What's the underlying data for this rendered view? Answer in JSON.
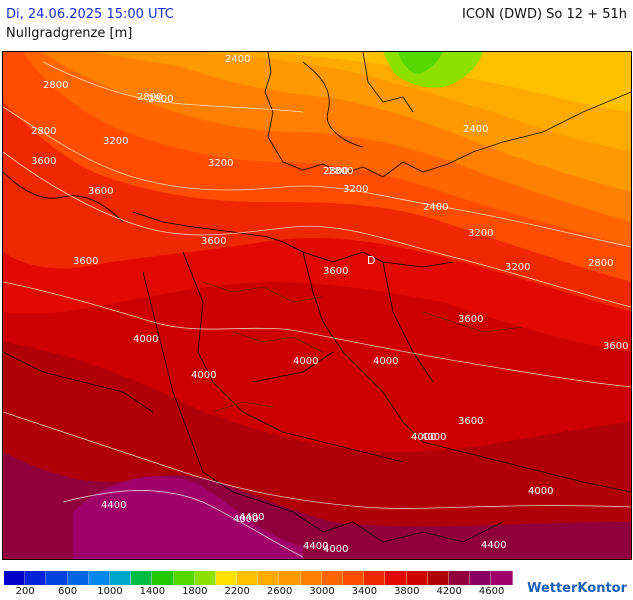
{
  "header": {
    "datetime": "Di, 24.06.2025 15:00 UTC",
    "model": "ICON (DWD) So 12 + 51h",
    "parameter": "Nullgradgrenze [m]"
  },
  "map": {
    "contour_labels": [
      "2800",
      "2800",
      "2400",
      "2800",
      "2800",
      "2400",
      "3200",
      "3200",
      "3600",
      "3600",
      "2800",
      "3200",
      "2800",
      "2400",
      "3600",
      "3600",
      "3200",
      "3200",
      "2800",
      "3600",
      "3600",
      "4000",
      "3600",
      "4000",
      "4000",
      "4000",
      "4000",
      "3600",
      "4000",
      "4000",
      "4000",
      "4000",
      "4400",
      "4400",
      "4400",
      "4400"
    ],
    "pressure_marker": "D",
    "colors": {
      "c2400": "#ffc000",
      "c2600": "#ffaa00",
      "c2800": "#ff9900",
      "c3000": "#ff8000",
      "c3200": "#ff6600",
      "c3400": "#ff4d00",
      "c3600": "#f02800",
      "c3800": "#e10a00",
      "c4000": "#cc0000",
      "c4200": "#b00008",
      "c4400": "#90003c",
      "c4600": "#a0006a",
      "c2200": "#8ee000",
      "c2000": "#55d800"
    }
  },
  "legend": {
    "colors": [
      "#0000c8",
      "#0022d8",
      "#0044e0",
      "#0066e6",
      "#0088ec",
      "#00a6cc",
      "#00bb44",
      "#22c800",
      "#55d800",
      "#8ee000",
      "#ffe000",
      "#ffc000",
      "#ffaa00",
      "#ff9900",
      "#ff8000",
      "#ff6600",
      "#ff4d00",
      "#f02800",
      "#e10a00",
      "#cc0000",
      "#b00008",
      "#90003c",
      "#8a0060",
      "#a0006a"
    ],
    "ticks": [
      "200",
      "600",
      "1000",
      "1400",
      "1800",
      "2200",
      "2600",
      "3000",
      "3400",
      "3800",
      "4200",
      "4600"
    ]
  },
  "brand": "WetterKontor"
}
